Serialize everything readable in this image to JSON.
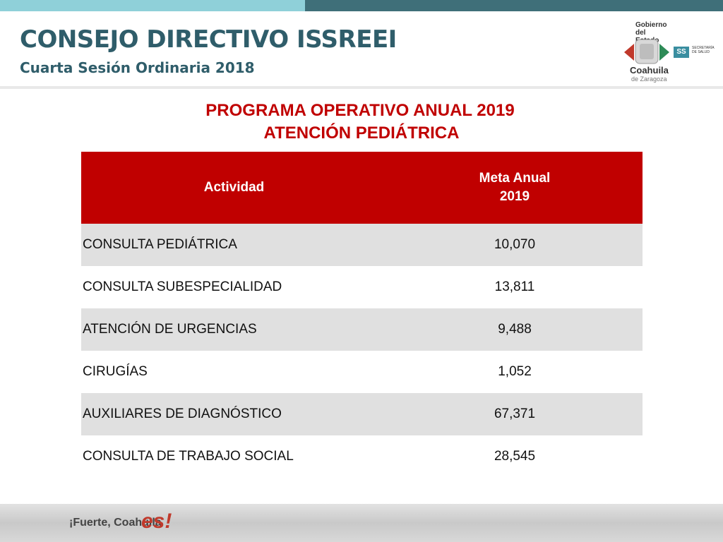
{
  "header": {
    "title": "CONSEJO DIRECTIVO ISSREEI",
    "subtitle": "Cuarta Sesión Ordinaria 2018",
    "logo": {
      "gobierno": "Gobierno del Estado",
      "state": "Coahuila",
      "state_sub": "de Zaragoza",
      "ss": "SS",
      "secretaria": "SECRETARÍA DE SALUD"
    }
  },
  "document": {
    "title_line1": "PROGRAMA OPERATIVO ANUAL 2019",
    "title_line2": "ATENCIÓN PEDIÁTRICA"
  },
  "table": {
    "headers": [
      "Actividad",
      "Meta Anual 2019"
    ],
    "rows": [
      {
        "actividad": "CONSULTA PEDIÁTRICA",
        "meta": "10,070"
      },
      {
        "actividad": "CONSULTA SUBESPECIALIDAD",
        "meta": "13,811"
      },
      {
        "actividad": "ATENCIÓN DE URGENCIAS",
        "meta": "9,488"
      },
      {
        "actividad": "CIRUGÍAS",
        "meta": "1,052"
      },
      {
        "actividad": "AUXILIARES DE DIAGNÓSTICO",
        "meta": "67,371"
      },
      {
        "actividad": "CONSULTA DE TRABAJO SOCIAL",
        "meta": "28,545"
      }
    ]
  },
  "footer": {
    "slogan": "¡Fuerte, Coahuila",
    "slogan_es": "es!"
  },
  "colors": {
    "accent_red": "#c00000",
    "title_teal": "#2f5d6a",
    "bar_light": "#8fd0d9",
    "bar_dark": "#3f6f79"
  }
}
